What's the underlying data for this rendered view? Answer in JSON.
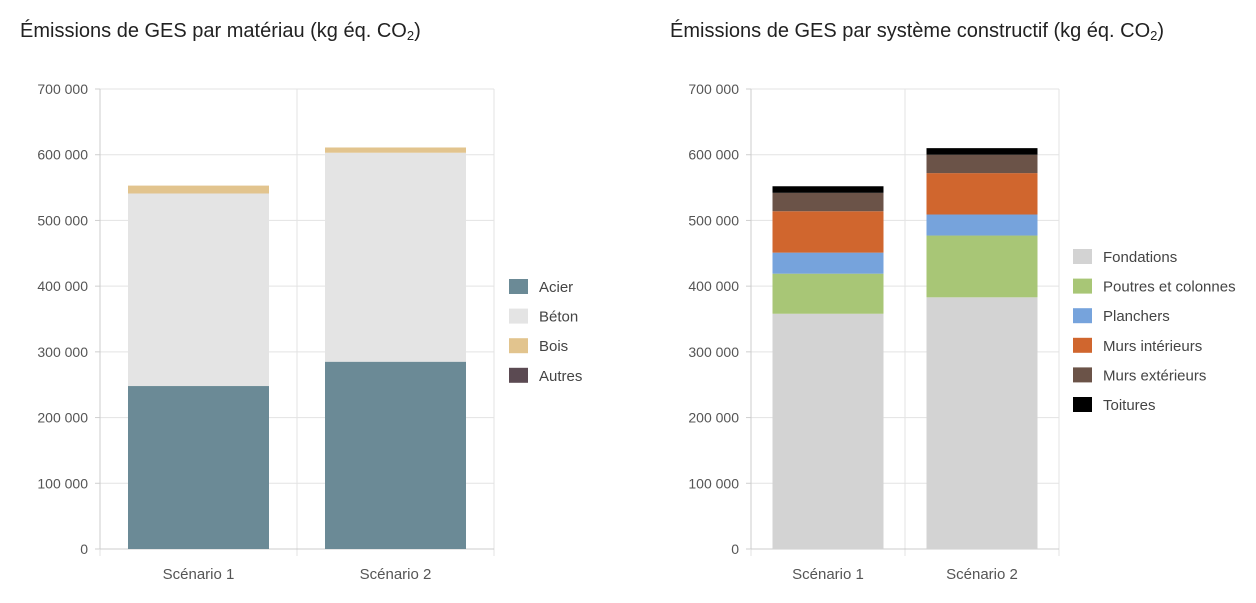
{
  "chart_data": [
    {
      "type": "bar",
      "stacked": true,
      "title_main": "Émissions de GES par matériau (kg éq. CO",
      "title_sub": "2",
      "title_end": ")",
      "categories": [
        "Scénario 1",
        "Scénario 2"
      ],
      "ylim": [
        0,
        700000
      ],
      "yticks": [
        "0",
        "100 000",
        "200 000",
        "300 000",
        "400 000",
        "500 000",
        "600 000",
        "700 000"
      ],
      "ytick_values": [
        0,
        100000,
        200000,
        300000,
        400000,
        500000,
        600000,
        700000
      ],
      "grid": true,
      "legend_position": "right",
      "series": [
        {
          "name": "Acier",
          "color": "#6b8a96",
          "values": [
            248000,
            285000
          ]
        },
        {
          "name": "Béton",
          "color": "#e4e4e4",
          "values": [
            293000,
            318000
          ]
        },
        {
          "name": "Bois",
          "color": "#e2c48e",
          "values": [
            12000,
            8000
          ]
        },
        {
          "name": "Autres",
          "color": "#5b4a52",
          "values": [
            0,
            0
          ]
        }
      ]
    },
    {
      "type": "bar",
      "stacked": true,
      "title_main": "Émissions de GES par système constructif (kg éq. CO",
      "title_sub": "2",
      "title_end": ")",
      "categories": [
        "Scénario 1",
        "Scénario 2"
      ],
      "ylim": [
        0,
        700000
      ],
      "yticks": [
        "0",
        "100 000",
        "200 000",
        "300 000",
        "400 000",
        "500 000",
        "600 000",
        "700 000"
      ],
      "ytick_values": [
        0,
        100000,
        200000,
        300000,
        400000,
        500000,
        600000,
        700000
      ],
      "grid": true,
      "legend_position": "right",
      "series": [
        {
          "name": "Fondations",
          "color": "#d3d3d3",
          "values": [
            358000,
            383000
          ]
        },
        {
          "name": "Poutres et colonnes",
          "color": "#a8c676",
          "values": [
            61000,
            94000
          ]
        },
        {
          "name": "Planchers",
          "color": "#76a3dc",
          "values": [
            32000,
            32000
          ]
        },
        {
          "name": "Murs intérieurs",
          "color": "#d0662e",
          "values": [
            63000,
            63000
          ]
        },
        {
          "name": "Murs extérieurs",
          "color": "#6b5348",
          "values": [
            28000,
            28000
          ]
        },
        {
          "name": "Toitures",
          "color": "#000000",
          "values": [
            10000,
            10000
          ]
        }
      ]
    }
  ]
}
